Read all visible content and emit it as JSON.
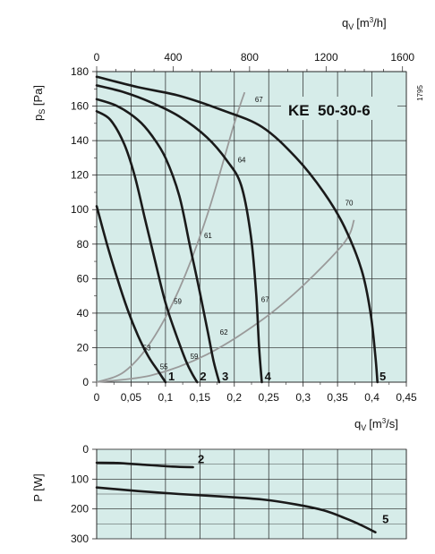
{
  "chart_data": [
    {
      "type": "line",
      "title": "KE  50-30-6",
      "ylabel": "p_S [Pa]",
      "xlabel": "q_V [m³/s]",
      "x2label": "q_V [m³/h]",
      "code": "1795",
      "xlim": [
        0,
        0.45
      ],
      "ylim": [
        0,
        180
      ],
      "x2lim": [
        0,
        1620
      ],
      "xticks": [
        "0",
        "0,05",
        "0,1",
        "0,15",
        "0,2",
        "0,25",
        "0,3",
        "0,35",
        "0,4",
        "0,45"
      ],
      "x2ticks": [
        "0",
        "400",
        "800",
        "1200",
        "1600"
      ],
      "yticks": [
        "0",
        "20",
        "40",
        "60",
        "80",
        "100",
        "120",
        "140",
        "160",
        "180"
      ],
      "grid": true,
      "background": "#d6ece9",
      "curve_color": "#1a1a1a",
      "parabola_color": "#9a9a9a",
      "series": [
        {
          "name": "1",
          "x": [
            0,
            0.015,
            0.03,
            0.045,
            0.06,
            0.075,
            0.09,
            0.1
          ],
          "y": [
            102,
            80,
            60,
            42,
            27,
            15,
            6,
            0
          ]
        },
        {
          "name": "2",
          "x": [
            0,
            0.02,
            0.04,
            0.055,
            0.07,
            0.085,
            0.1,
            0.115,
            0.13,
            0.14,
            0.146
          ],
          "y": [
            157,
            152,
            138,
            120,
            95,
            70,
            46,
            28,
            12,
            4,
            0
          ]
        },
        {
          "name": "3",
          "x": [
            0,
            0.03,
            0.06,
            0.08,
            0.1,
            0.12,
            0.135,
            0.15,
            0.162,
            0.17,
            0.178
          ],
          "y": [
            164,
            160,
            152,
            143,
            130,
            108,
            80,
            52,
            28,
            12,
            0
          ]
        },
        {
          "name": "4",
          "x": [
            0,
            0.04,
            0.08,
            0.12,
            0.16,
            0.19,
            0.21,
            0.224,
            0.232,
            0.236,
            0.24
          ],
          "y": [
            172,
            168,
            162,
            154,
            142,
            128,
            114,
            85,
            50,
            20,
            0
          ]
        },
        {
          "name": "5",
          "x": [
            0,
            0.06,
            0.12,
            0.18,
            0.24,
            0.29,
            0.33,
            0.36,
            0.385,
            0.398,
            0.405,
            0.408
          ],
          "y": [
            177,
            171,
            166,
            158,
            148,
            130,
            110,
            90,
            65,
            40,
            15,
            0
          ]
        }
      ],
      "efficiency_lines": [
        {
          "x": [
            0,
            0.04,
            0.08,
            0.12,
            0.16,
            0.2,
            0.215
          ],
          "y": [
            0,
            6,
            24,
            54,
            96,
            150,
            168
          ]
        },
        {
          "x": [
            0,
            0.08,
            0.16,
            0.24,
            0.3,
            0.36,
            0.374
          ],
          "y": [
            0,
            4,
            16,
            36,
            56,
            81,
            94
          ]
        }
      ],
      "annotations": [
        {
          "text": "67",
          "x": 0.23,
          "y": 164
        },
        {
          "text": "64",
          "x": 0.205,
          "y": 129
        },
        {
          "text": "61",
          "x": 0.156,
          "y": 85
        },
        {
          "text": "59",
          "x": 0.112,
          "y": 47
        },
        {
          "text": "59",
          "x": 0.136,
          "y": 15
        },
        {
          "text": "53",
          "x": 0.067,
          "y": 20
        },
        {
          "text": "55",
          "x": 0.092,
          "y": 9
        },
        {
          "text": "62",
          "x": 0.179,
          "y": 29
        },
        {
          "text": "67",
          "x": 0.239,
          "y": 48
        },
        {
          "text": "70",
          "x": 0.361,
          "y": 104
        }
      ],
      "curve_labels": [
        {
          "text": "1",
          "x": 0.104,
          "y": 2
        },
        {
          "text": "2",
          "x": 0.15,
          "y": 2
        },
        {
          "text": "3",
          "x": 0.182,
          "y": 2
        },
        {
          "text": "4",
          "x": 0.244,
          "y": 2
        },
        {
          "text": "5",
          "x": 0.411,
          "y": 2
        }
      ]
    },
    {
      "type": "line",
      "ylabel": "P [W]",
      "xlim": [
        0,
        0.45
      ],
      "ylim": [
        0,
        300
      ],
      "y_inverted": true,
      "yticks": [
        "0",
        "100",
        "200",
        "300"
      ],
      "grid": true,
      "series": [
        {
          "name": "2",
          "x": [
            0,
            0.03,
            0.07,
            0.11,
            0.14
          ],
          "y": [
            45,
            46,
            52,
            58,
            60
          ]
        },
        {
          "name": "5",
          "x": [
            0,
            0.06,
            0.12,
            0.18,
            0.24,
            0.29,
            0.33,
            0.36,
            0.385,
            0.405
          ],
          "y": [
            128,
            140,
            150,
            158,
            168,
            185,
            205,
            230,
            255,
            278
          ]
        }
      ],
      "curve_labels": [
        {
          "text": "2",
          "x": 0.147,
          "y": 35
        },
        {
          "text": "5",
          "x": 0.415,
          "y": 235
        }
      ]
    }
  ]
}
